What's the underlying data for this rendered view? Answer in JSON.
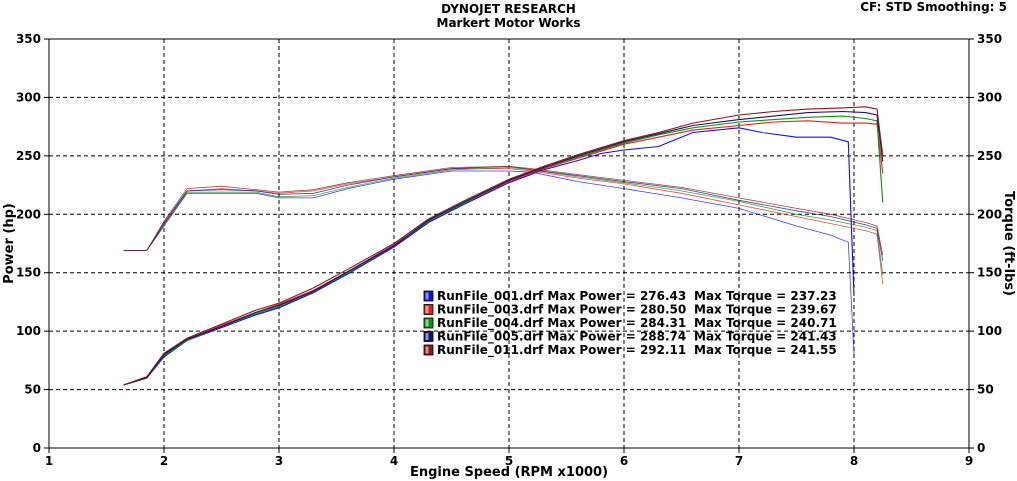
{
  "header": {
    "title": "DYNOJET RESEARCH",
    "subtitle": "Markert Motor Works",
    "cf_smoothing": "CF: STD   Smoothing: 5"
  },
  "chart_data": {
    "type": "line",
    "xlabel": "Engine Speed (RPM x1000)",
    "ylabel_left": "Power (hp)",
    "ylabel_right": "Torque (ft-lbs)",
    "xlim": [
      1,
      9
    ],
    "ylim": [
      0,
      350
    ],
    "x_ticks": [
      1,
      2,
      3,
      4,
      5,
      6,
      7,
      8,
      9
    ],
    "y_ticks": [
      0,
      50,
      100,
      150,
      200,
      250,
      300,
      350
    ],
    "grid": true,
    "legend_placement": "center-right",
    "series": [
      {
        "name": "RunFile_001.drf",
        "max_power_label": "Max Power = 276.43",
        "max_torque_label": "Max Torque = 237.23",
        "color": "#1010d8",
        "power": [
          [
            1.65,
            54
          ],
          [
            1.85,
            60
          ],
          [
            2.0,
            78
          ],
          [
            2.2,
            92
          ],
          [
            2.5,
            103
          ],
          [
            2.8,
            114
          ],
          [
            3.0,
            120
          ],
          [
            3.3,
            133
          ],
          [
            3.6,
            149
          ],
          [
            4.0,
            172
          ],
          [
            4.3,
            193
          ],
          [
            4.6,
            208
          ],
          [
            5.0,
            227
          ],
          [
            5.3,
            238
          ],
          [
            5.6,
            246
          ],
          [
            5.8,
            252
          ],
          [
            6.0,
            255
          ],
          [
            6.3,
            258
          ],
          [
            6.6,
            270
          ],
          [
            7.0,
            274
          ],
          [
            7.2,
            270
          ],
          [
            7.5,
            266
          ],
          [
            7.8,
            266
          ],
          [
            7.95,
            262
          ],
          [
            8.0,
            130
          ]
        ],
        "torque": [
          [
            1.65,
            169
          ],
          [
            1.85,
            169
          ],
          [
            2.0,
            190
          ],
          [
            2.2,
            218
          ],
          [
            2.5,
            218
          ],
          [
            2.8,
            218
          ],
          [
            3.0,
            214
          ],
          [
            3.3,
            214
          ],
          [
            3.6,
            222
          ],
          [
            4.0,
            230
          ],
          [
            4.5,
            237
          ],
          [
            5.0,
            237
          ],
          [
            5.2,
            236
          ],
          [
            5.6,
            228
          ],
          [
            6.0,
            222
          ],
          [
            6.5,
            214
          ],
          [
            7.0,
            205
          ],
          [
            7.5,
            190
          ],
          [
            7.8,
            182
          ],
          [
            7.95,
            176
          ],
          [
            8.0,
            80
          ]
        ]
      },
      {
        "name": "RunFile_003.drf",
        "max_power_label": "Max Power = 280.50",
        "max_torque_label": "Max Torque = 239.67",
        "color": "#e02020",
        "power": [
          [
            1.65,
            54
          ],
          [
            1.85,
            60
          ],
          [
            2.0,
            80
          ],
          [
            2.2,
            93
          ],
          [
            2.5,
            105
          ],
          [
            2.8,
            116
          ],
          [
            3.0,
            123
          ],
          [
            3.3,
            135
          ],
          [
            3.6,
            151
          ],
          [
            4.0,
            174
          ],
          [
            4.3,
            194
          ],
          [
            4.6,
            209
          ],
          [
            5.0,
            228
          ],
          [
            5.3,
            239
          ],
          [
            5.6,
            248
          ],
          [
            6.0,
            260
          ],
          [
            6.3,
            266
          ],
          [
            6.6,
            272
          ],
          [
            7.0,
            276
          ],
          [
            7.3,
            279
          ],
          [
            7.6,
            280
          ],
          [
            7.9,
            278
          ],
          [
            8.1,
            278
          ],
          [
            8.2,
            277
          ],
          [
            8.25,
            235
          ]
        ],
        "torque": [
          [
            1.65,
            169
          ],
          [
            1.85,
            169
          ],
          [
            2.0,
            193
          ],
          [
            2.2,
            220
          ],
          [
            2.5,
            222
          ],
          [
            2.8,
            220
          ],
          [
            3.0,
            218
          ],
          [
            3.3,
            220
          ],
          [
            3.6,
            226
          ],
          [
            4.0,
            232
          ],
          [
            4.5,
            239
          ],
          [
            5.0,
            239
          ],
          [
            5.2,
            237
          ],
          [
            5.6,
            231
          ],
          [
            6.0,
            226
          ],
          [
            6.5,
            218
          ],
          [
            7.0,
            208
          ],
          [
            7.5,
            198
          ],
          [
            7.8,
            192
          ],
          [
            8.1,
            186
          ],
          [
            8.2,
            183
          ],
          [
            8.25,
            140
          ]
        ]
      },
      {
        "name": "RunFile_004.drf",
        "max_power_label": "Max Power = 284.31",
        "max_torque_label": "Max Torque = 240.71",
        "color": "#109010",
        "power": [
          [
            1.65,
            54
          ],
          [
            1.85,
            60
          ],
          [
            2.0,
            79
          ],
          [
            2.2,
            92
          ],
          [
            2.5,
            104
          ],
          [
            2.8,
            115
          ],
          [
            3.0,
            121
          ],
          [
            3.3,
            134
          ],
          [
            3.6,
            150
          ],
          [
            4.0,
            173
          ],
          [
            4.3,
            194
          ],
          [
            4.6,
            209
          ],
          [
            5.0,
            229
          ],
          [
            5.3,
            240
          ],
          [
            5.6,
            249
          ],
          [
            6.0,
            261
          ],
          [
            6.3,
            268
          ],
          [
            6.6,
            274
          ],
          [
            7.0,
            279
          ],
          [
            7.3,
            281
          ],
          [
            7.6,
            283
          ],
          [
            7.9,
            284
          ],
          [
            8.1,
            282
          ],
          [
            8.2,
            280
          ],
          [
            8.25,
            210
          ]
        ],
        "torque": [
          [
            1.65,
            169
          ],
          [
            1.85,
            169
          ],
          [
            2.0,
            191
          ],
          [
            2.2,
            219
          ],
          [
            2.5,
            219
          ],
          [
            2.8,
            219
          ],
          [
            3.0,
            215
          ],
          [
            3.3,
            216
          ],
          [
            3.6,
            223
          ],
          [
            4.0,
            231
          ],
          [
            4.5,
            238
          ],
          [
            5.0,
            240
          ],
          [
            5.2,
            238
          ],
          [
            5.6,
            232
          ],
          [
            6.0,
            227
          ],
          [
            6.5,
            220
          ],
          [
            7.0,
            211
          ],
          [
            7.5,
            200
          ],
          [
            7.8,
            195
          ],
          [
            8.1,
            189
          ],
          [
            8.2,
            186
          ],
          [
            8.25,
            148
          ]
        ]
      },
      {
        "name": "RunFile_005.drf",
        "max_power_label": "Max Power = 288.74",
        "max_torque_label": "Max Torque = 241.43",
        "color": "#14146e",
        "power": [
          [
            1.65,
            54
          ],
          [
            1.85,
            60
          ],
          [
            2.0,
            80
          ],
          [
            2.2,
            93
          ],
          [
            2.5,
            104
          ],
          [
            2.8,
            116
          ],
          [
            3.0,
            122
          ],
          [
            3.3,
            134
          ],
          [
            3.6,
            151
          ],
          [
            4.0,
            173
          ],
          [
            4.3,
            195
          ],
          [
            4.6,
            210
          ],
          [
            5.0,
            229
          ],
          [
            5.3,
            240
          ],
          [
            5.6,
            250
          ],
          [
            6.0,
            262
          ],
          [
            6.3,
            269
          ],
          [
            6.6,
            276
          ],
          [
            7.0,
            281
          ],
          [
            7.3,
            284
          ],
          [
            7.6,
            287
          ],
          [
            7.9,
            288
          ],
          [
            8.1,
            287
          ],
          [
            8.2,
            285
          ],
          [
            8.25,
            245
          ]
        ],
        "torque": [
          [
            1.65,
            169
          ],
          [
            1.85,
            169
          ],
          [
            2.0,
            192
          ],
          [
            2.2,
            220
          ],
          [
            2.5,
            221
          ],
          [
            2.8,
            220
          ],
          [
            3.0,
            217
          ],
          [
            3.3,
            218
          ],
          [
            3.6,
            225
          ],
          [
            4.0,
            232
          ],
          [
            4.5,
            239
          ],
          [
            5.0,
            241
          ],
          [
            5.2,
            238
          ],
          [
            5.6,
            233
          ],
          [
            6.0,
            228
          ],
          [
            6.5,
            222
          ],
          [
            7.0,
            212
          ],
          [
            7.5,
            203
          ],
          [
            7.8,
            198
          ],
          [
            8.1,
            191
          ],
          [
            8.2,
            188
          ],
          [
            8.25,
            160
          ]
        ]
      },
      {
        "name": "RunFile_011.drf",
        "max_power_label": "Max Power = 292.11",
        "max_torque_label": "Max Torque = 241.55",
        "color": "#8a1818",
        "power": [
          [
            1.65,
            54
          ],
          [
            1.85,
            61
          ],
          [
            2.0,
            81
          ],
          [
            2.2,
            94
          ],
          [
            2.5,
            106
          ],
          [
            2.8,
            118
          ],
          [
            3.0,
            124
          ],
          [
            3.3,
            137
          ],
          [
            3.6,
            153
          ],
          [
            4.0,
            175
          ],
          [
            4.3,
            196
          ],
          [
            4.6,
            211
          ],
          [
            5.0,
            230
          ],
          [
            5.3,
            241
          ],
          [
            5.6,
            251
          ],
          [
            6.0,
            263
          ],
          [
            6.3,
            270
          ],
          [
            6.6,
            278
          ],
          [
            7.0,
            285
          ],
          [
            7.3,
            288
          ],
          [
            7.6,
            290
          ],
          [
            7.9,
            291
          ],
          [
            8.1,
            292
          ],
          [
            8.2,
            290
          ],
          [
            8.25,
            250
          ]
        ],
        "torque": [
          [
            1.65,
            169
          ],
          [
            1.85,
            169
          ],
          [
            2.0,
            194
          ],
          [
            2.2,
            222
          ],
          [
            2.5,
            224
          ],
          [
            2.8,
            221
          ],
          [
            3.0,
            219
          ],
          [
            3.3,
            221
          ],
          [
            3.6,
            227
          ],
          [
            4.0,
            233
          ],
          [
            4.5,
            240
          ],
          [
            5.0,
            241
          ],
          [
            5.2,
            239
          ],
          [
            5.6,
            234
          ],
          [
            6.0,
            229
          ],
          [
            6.5,
            223
          ],
          [
            7.0,
            214
          ],
          [
            7.5,
            205
          ],
          [
            7.8,
            200
          ],
          [
            8.1,
            193
          ],
          [
            8.2,
            190
          ],
          [
            8.25,
            165
          ]
        ]
      }
    ]
  }
}
